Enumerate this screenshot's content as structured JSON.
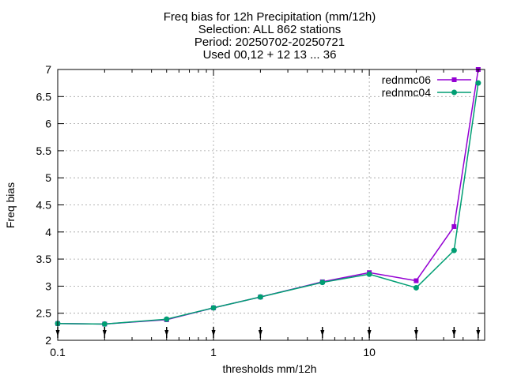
{
  "chart_data": {
    "type": "line",
    "title_lines": [
      "Freq bias  for 12h Precipitation (mm/12h)",
      "Selection: ALL    862 stations",
      "Period: 20250702-20250721",
      "Used 00,12 + 12 13 ... 36"
    ],
    "xlabel": "thresholds mm/12h",
    "ylabel": "Freq bias",
    "x_scale": "log",
    "xlim": [
      0.1,
      55
    ],
    "ylim": [
      2,
      7
    ],
    "x_ticks": [
      0.1,
      1,
      10
    ],
    "x_tick_labels": [
      "0.1",
      "1",
      "10"
    ],
    "y_ticks": [
      2,
      2.5,
      3,
      3.5,
      4,
      4.5,
      5,
      5.5,
      6,
      6.5,
      7
    ],
    "y_tick_labels": [
      "2",
      "2.5",
      "3",
      "3.5",
      "4",
      "4.5",
      "5",
      "5.5",
      "6",
      "6.5",
      "7"
    ],
    "grid": true,
    "legend_position": "top-right",
    "threshold_markers": [
      0.1,
      0.2,
      0.5,
      1,
      2,
      5,
      10,
      20,
      35,
      50
    ],
    "x": [
      0.1,
      0.2,
      0.5,
      1,
      2,
      5,
      10,
      20,
      35,
      50
    ],
    "series": [
      {
        "name": "rednmc06",
        "color": "#9400d3",
        "marker": "square",
        "values": [
          2.31,
          2.3,
          2.38,
          2.6,
          2.8,
          3.08,
          3.25,
          3.1,
          4.1,
          7.0
        ]
      },
      {
        "name": "rednmc04",
        "color": "#009e73",
        "marker": "circle",
        "values": [
          2.31,
          2.3,
          2.39,
          2.6,
          2.8,
          3.07,
          3.22,
          2.97,
          3.66,
          6.75
        ]
      }
    ]
  }
}
